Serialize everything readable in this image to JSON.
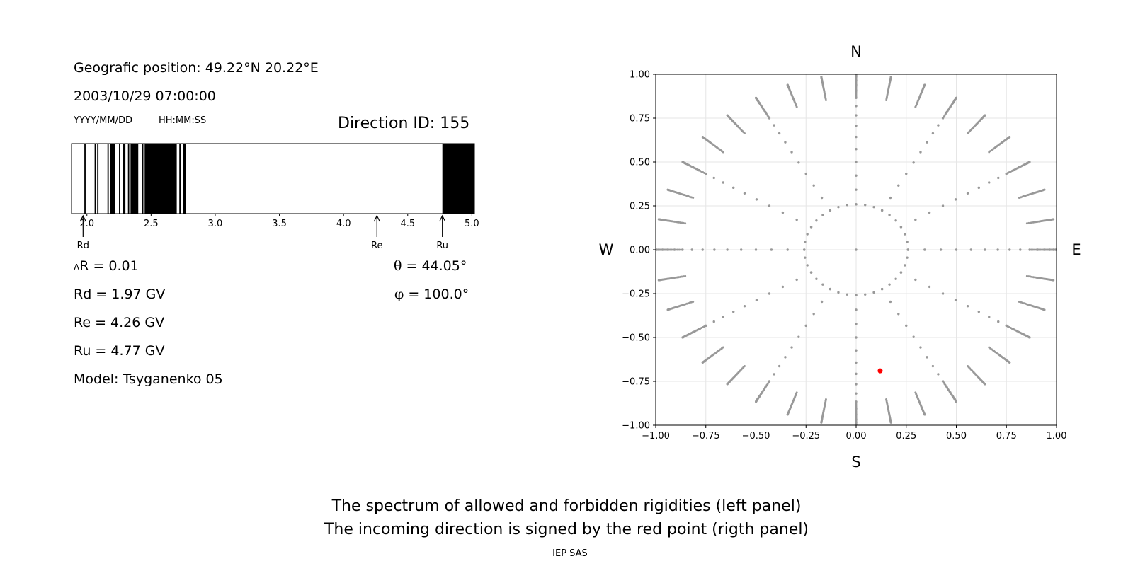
{
  "left_panel": {
    "position": "Geografic position: 49.22°N 20.22°E",
    "datetime": "2003/10/29 07:00:00",
    "date_format": "YYYY/MM/DD",
    "time_format": "HH:MM:SS",
    "direction_id": "Direction ID: 155",
    "delta_r_symbol": "Δ",
    "delta_r": "R = 0.01",
    "rd_line": "Rd = 1.97 GV",
    "re_line": "Re = 4.26 GV",
    "ru_line": "Ru = 4.77 GV",
    "model_line": "Model: Tsyganenko 05",
    "theta_symbol": "θ",
    "theta": " = 44.05°",
    "phi_symbol": "φ",
    "phi": " = 100.0°"
  },
  "chart_data": [
    {
      "type": "spectrum",
      "xlim": [
        1.88,
        5.02
      ],
      "ticks": [
        "2.0",
        "2.5",
        "3.0",
        "3.5",
        "4.0",
        "4.5",
        "5.0"
      ],
      "forbidden_intervals": [
        [
          1.98,
          1.99
        ],
        [
          2.06,
          2.07
        ],
        [
          2.08,
          2.09
        ],
        [
          2.16,
          2.17
        ],
        [
          2.18,
          2.22
        ],
        [
          2.25,
          2.26
        ],
        [
          2.28,
          2.3
        ],
        [
          2.32,
          2.33
        ],
        [
          2.34,
          2.4
        ],
        [
          2.43,
          2.44
        ],
        [
          2.45,
          2.7
        ],
        [
          2.72,
          2.73
        ],
        [
          2.75,
          2.77
        ],
        [
          4.77,
          5.02
        ]
      ],
      "markers": [
        {
          "label": "Rd",
          "value": 1.97
        },
        {
          "label": "Re",
          "value": 4.26
        },
        {
          "label": "Ru",
          "value": 4.77
        }
      ],
      "colors": {
        "forbidden": "#000000",
        "allowed": "#ffffff"
      }
    },
    {
      "type": "scatter",
      "xlim": [
        -1.0,
        1.0
      ],
      "ylim": [
        -1.0,
        1.0
      ],
      "ticks_x": [
        "−1.00",
        "−0.75",
        "−0.50",
        "−0.25",
        "0.00",
        "0.25",
        "0.50",
        "0.75",
        "1.00"
      ],
      "ticks_y": [
        "1.00",
        "0.75",
        "0.50",
        "0.25",
        "0.00",
        "−0.25",
        "−0.50",
        "−0.75",
        "−1.00"
      ],
      "grid": true,
      "directions": {
        "north": "N",
        "south": "S",
        "west": "W",
        "east": "E"
      },
      "grid_pattern": {
        "zenith_start_deg": 15,
        "zenith_step_deg": 5,
        "zenith_end_deg": 85,
        "azimuth_step_deg": 30,
        "outer_zenith_step_deg": 1,
        "outer_azimuth_step_deg": 10
      },
      "highlight_point": {
        "x": 0.12,
        "y": -0.69,
        "color": "#ff0000"
      },
      "point_color": "#999999"
    }
  ],
  "captions": {
    "line1": "The spectrum of allowed and forbidden rigidities (left panel)",
    "line2": "The incoming direction is signed by the red point (rigth panel)",
    "credit": "IEP SAS"
  }
}
